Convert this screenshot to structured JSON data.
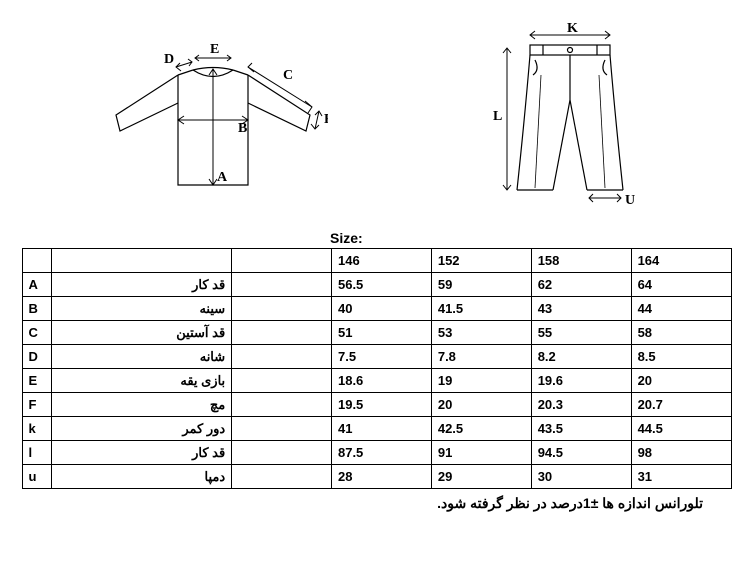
{
  "diagrams": {
    "shirt": {
      "labels": {
        "A": "A",
        "B": "B",
        "C": "C",
        "D": "D",
        "E": "E",
        "F": "F"
      },
      "stroke_color": "#000000",
      "stroke_width": 1.2
    },
    "pants": {
      "labels": {
        "K": "K",
        "L": "L",
        "U": "U"
      },
      "stroke_color": "#000000",
      "stroke_width": 1.2
    }
  },
  "size_label": "Size:",
  "table": {
    "columns": [
      "146",
      "152",
      "158",
      "164"
    ],
    "rows": [
      {
        "letter": "A",
        "name": "قد کار",
        "values": [
          "56.5",
          "59",
          "62",
          "64"
        ]
      },
      {
        "letter": "B",
        "name": "سینه",
        "values": [
          "40",
          "41.5",
          "43",
          "44"
        ]
      },
      {
        "letter": "C",
        "name": "قد آستین",
        "values": [
          "51",
          "53",
          "55",
          "58"
        ]
      },
      {
        "letter": "D",
        "name": "شانه",
        "values": [
          "7.5",
          "7.8",
          "8.2",
          "8.5"
        ]
      },
      {
        "letter": "E",
        "name": "بازی یقه",
        "values": [
          "18.6",
          "19",
          "19.6",
          "20"
        ]
      },
      {
        "letter": "F",
        "name": "مچ",
        "values": [
          "19.5",
          "20",
          "20.3",
          "20.7"
        ]
      },
      {
        "letter": "k",
        "name": "دور کمر",
        "values": [
          "41",
          "42.5",
          "43.5",
          "44.5"
        ]
      },
      {
        "letter": "l",
        "name": "قد کار",
        "values": [
          "87.5",
          "91",
          "94.5",
          "98"
        ]
      },
      {
        "letter": "u",
        "name": "دمپا",
        "values": [
          "28",
          "29",
          "30",
          "31"
        ]
      }
    ]
  },
  "footnote": "تلورانس اندازه ها  ±1درصد در نظر گرفته شود."
}
